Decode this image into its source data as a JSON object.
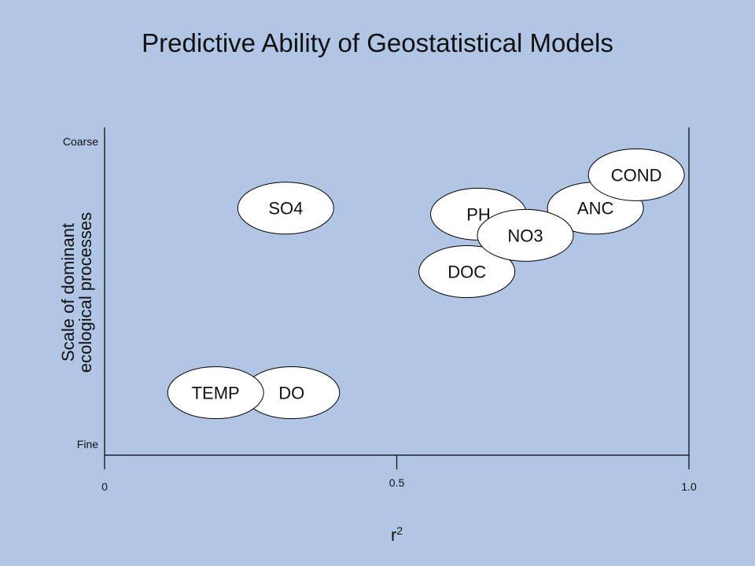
{
  "page": {
    "title": "Predictive Ability of Geostatistical Models",
    "background": "#b0c6e4"
  },
  "chart_data": {
    "type": "scatter",
    "title": "Predictive Ability of Geostatistical Models",
    "xlabel": "r",
    "xlabel_superscript": "2",
    "ylabel_lines": [
      "Scale of dominant",
      "ecological processes"
    ],
    "xlim": [
      0,
      1.0
    ],
    "ylim": [
      0,
      1.0
    ],
    "x_ticks": [
      {
        "value": 0,
        "label": "0"
      },
      {
        "value": 0.5,
        "label": "0.5"
      },
      {
        "value": 1.0,
        "label": "1.0"
      }
    ],
    "y_ticks": [
      {
        "value": 0,
        "label": "Fine"
      },
      {
        "value": 1.0,
        "label": "Coarse"
      }
    ],
    "grid": false,
    "marker": "ellipse",
    "marker_fill": "#ffffff",
    "marker_stroke": "#000000",
    "points": [
      {
        "label": "SO4",
        "x": 0.31,
        "y": 0.78
      },
      {
        "label": "DO",
        "x": 0.32,
        "y": 0.17
      },
      {
        "label": "TEMP",
        "x": 0.19,
        "y": 0.17
      },
      {
        "label": "DOC",
        "x": 0.62,
        "y": 0.57
      },
      {
        "label": "ANC",
        "x": 0.84,
        "y": 0.78
      },
      {
        "label": "PH",
        "x": 0.64,
        "y": 0.76
      },
      {
        "label": "NO3",
        "x": 0.72,
        "y": 0.69
      },
      {
        "label": "COND",
        "x": 0.91,
        "y": 0.89
      }
    ]
  }
}
